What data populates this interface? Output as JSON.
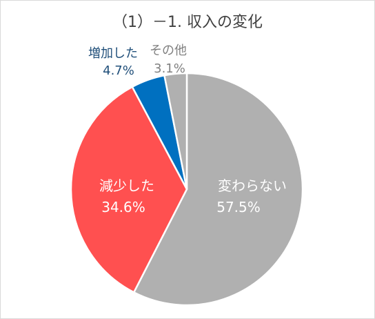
{
  "chart_data": {
    "type": "pie",
    "title": "（1）－1. 収入の変化",
    "slices": [
      {
        "label": "変わらない",
        "value": 57.5,
        "display": "57.5%",
        "color": "#b0b0b0",
        "label_color": "#ffffff"
      },
      {
        "label": "減少した",
        "value": 34.6,
        "display": "34.6%",
        "color": "#ff5050",
        "label_color": "#ffffff"
      },
      {
        "label": "増加した",
        "value": 4.7,
        "display": "4.7%",
        "color": "#0070c0",
        "label_color": "#1f4e79"
      },
      {
        "label": "その他",
        "value": 3.1,
        "display": "3.1%",
        "color": "#b0b0b0",
        "label_color": "#808080"
      }
    ]
  }
}
